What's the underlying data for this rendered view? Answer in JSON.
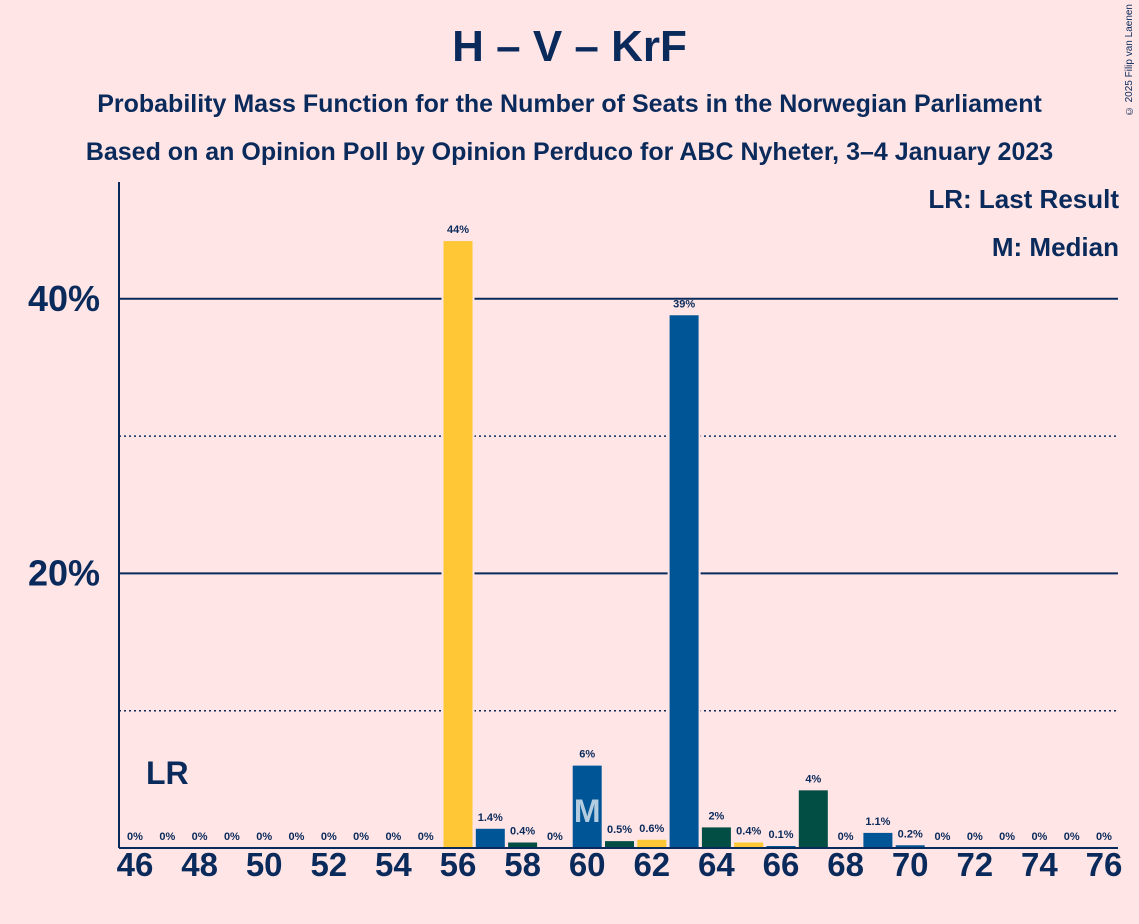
{
  "title": "H – V – KrF",
  "subtitle_1": "Probability Mass Function for the Number of Seats in the Norwegian Parliament",
  "subtitle_2": "Based on an Opinion Poll by Opinion Perduco for ABC Nyheter, 3–4 January 2023",
  "copyright": "© 2025 Filip van Laenen",
  "legend": {
    "last_result": "LR: Last Result",
    "median": "M: Median"
  },
  "markers": {
    "last_result_label": "LR",
    "last_result_seat": 47,
    "median_label": "M",
    "median_seat": 60
  },
  "colors": {
    "background": "#FFE5E5",
    "text": "#0A2A5C",
    "bar_blue": "#005596",
    "bar_yellow": "#FFC635",
    "bar_green": "#024D44"
  },
  "chart_data": {
    "type": "bar",
    "x": [
      46,
      47,
      48,
      49,
      50,
      51,
      52,
      53,
      54,
      55,
      56,
      57,
      58,
      59,
      60,
      61,
      62,
      63,
      64,
      65,
      66,
      67,
      68,
      69,
      70,
      71,
      72,
      73,
      74,
      75,
      76
    ],
    "values": [
      0,
      0,
      0,
      0,
      0,
      0,
      0,
      0,
      0,
      0,
      44.2,
      1.4,
      0.4,
      0,
      6.0,
      0.5,
      0.6,
      38.8,
      1.5,
      0.4,
      0.1,
      4.2,
      0,
      1.1,
      0.2,
      0,
      0,
      0,
      0,
      0,
      0
    ],
    "labels": [
      "0%",
      "0%",
      "0%",
      "0%",
      "0%",
      "0%",
      "0%",
      "0%",
      "0%",
      "0%",
      "44%",
      "1.4%",
      "0.4%",
      "0%",
      "6%",
      "0.5%",
      "0.6%",
      "39%",
      "2%",
      "0.4%",
      "0.1%",
      "4%",
      "0%",
      "1.1%",
      "0.2%",
      "0%",
      "0%",
      "0%",
      "0%",
      "0%",
      "0%"
    ],
    "bar_colors": [
      "bar_blue",
      "bar_blue",
      "bar_blue",
      "bar_blue",
      "bar_blue",
      "bar_blue",
      "bar_blue",
      "bar_blue",
      "bar_blue",
      "bar_blue",
      "bar_yellow",
      "bar_blue",
      "bar_green",
      "bar_blue",
      "bar_blue",
      "bar_green",
      "bar_yellow",
      "bar_blue",
      "bar_green",
      "bar_yellow",
      "bar_blue",
      "bar_green",
      "bar_blue",
      "bar_blue",
      "bar_blue",
      "bar_blue",
      "bar_blue",
      "bar_blue",
      "bar_blue",
      "bar_blue",
      "bar_blue"
    ],
    "x_tick_labels": [
      "46",
      "48",
      "50",
      "52",
      "54",
      "56",
      "58",
      "60",
      "62",
      "64",
      "66",
      "68",
      "70",
      "72",
      "74",
      "76"
    ],
    "x_tick_values": [
      46,
      48,
      50,
      52,
      54,
      56,
      58,
      60,
      62,
      64,
      66,
      68,
      70,
      72,
      74,
      76
    ],
    "y_ticks": [
      {
        "value": 20,
        "label": "20%"
      },
      {
        "value": 40,
        "label": "40%"
      }
    ],
    "y_minor_ticks": [
      10,
      30
    ],
    "ylim": [
      0,
      48.5
    ],
    "xlabel": "",
    "ylabel": ""
  }
}
